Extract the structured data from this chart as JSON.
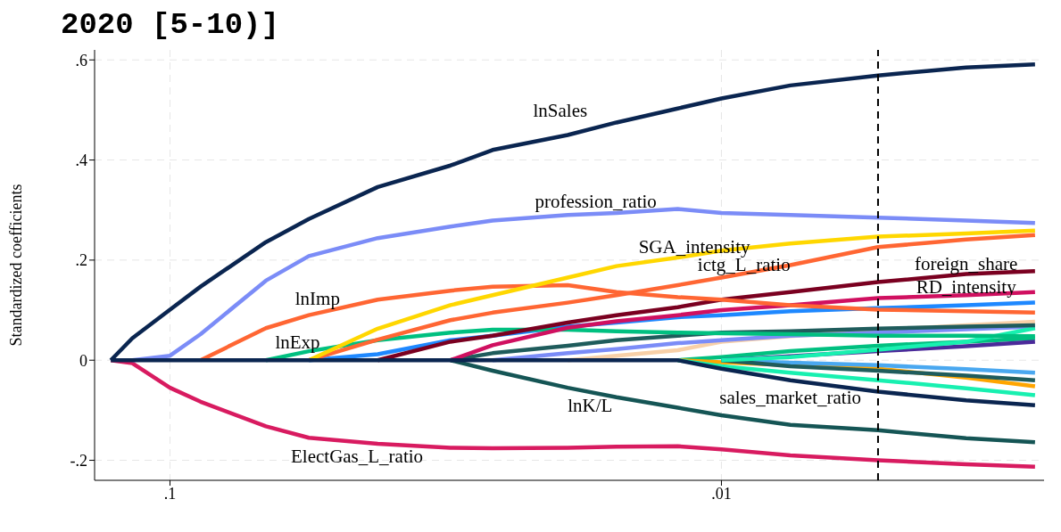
{
  "chart_data": {
    "type": "line",
    "title": "2020 [5-10)]",
    "ylabel": "Standardized coefficients",
    "log": "x",
    "grid": true,
    "legend": false,
    "marker": "none",
    "line_style": "solid",
    "x": [
      0.128,
      0.117,
      0.1,
      0.088,
      0.067,
      0.056,
      0.042,
      0.031,
      0.026,
      0.019,
      0.0155,
      0.012,
      0.01,
      0.0075,
      0.0052,
      0.0036,
      0.0027
    ],
    "xlim": [
      0.137,
      0.0026
    ],
    "xticks": [
      {
        "value": 0.1,
        "label": ".1"
      },
      {
        "value": 0.01,
        "label": ".01"
      }
    ],
    "ylim": [
      -0.24,
      0.62
    ],
    "yticks": [
      {
        "value": -0.2,
        "label": "-.2"
      },
      {
        "value": 0,
        "label": "0"
      },
      {
        "value": 0.2,
        "label": ".2"
      },
      {
        "value": 0.4,
        "label": ".4"
      },
      {
        "value": 0.6,
        "label": ".6"
      }
    ],
    "series": [
      {
        "color": "#f8d0a8",
        "values": [
          null,
          null,
          null,
          null,
          null,
          null,
          null,
          null,
          null,
          0,
          0.009,
          0.02,
          0.037,
          0.048,
          0.06,
          0.07,
          0.077
        ]
      },
      {
        "color": "#7b8cf7",
        "values": [
          null,
          null,
          null,
          null,
          null,
          null,
          null,
          null,
          0,
          0.014,
          0.022,
          0.034,
          0.04,
          0.049,
          0.055,
          0.062,
          0.067
        ]
      },
      {
        "color": "#00c080",
        "values": [
          null,
          null,
          null,
          null,
          null,
          null,
          null,
          null,
          null,
          null,
          null,
          0,
          0.006,
          0.018,
          0.029,
          0.037,
          0.044
        ]
      },
      {
        "color": "#4b2a9a",
        "values": [
          null,
          null,
          null,
          null,
          null,
          null,
          null,
          null,
          null,
          null,
          null,
          null,
          0,
          0.008,
          0.018,
          0.028,
          0.037
        ]
      },
      {
        "color": "#ffa500",
        "values": [
          null,
          null,
          null,
          null,
          null,
          null,
          null,
          null,
          null,
          null,
          null,
          0,
          -0.004,
          -0.01,
          -0.017,
          -0.035,
          -0.052
        ]
      },
      {
        "color": "#18f0b0",
        "values": [
          null,
          null,
          null,
          null,
          null,
          null,
          null,
          null,
          null,
          null,
          null,
          0,
          -0.012,
          -0.025,
          -0.04,
          -0.056,
          -0.07
        ]
      },
      {
        "color": "#4aa8f0",
        "values": [
          null,
          null,
          null,
          null,
          null,
          null,
          null,
          null,
          null,
          null,
          null,
          null,
          0,
          -0.005,
          -0.01,
          -0.018,
          -0.025
        ]
      },
      {
        "color": "#1f5c5c",
        "values": [
          null,
          null,
          null,
          null,
          null,
          null,
          null,
          null,
          null,
          null,
          null,
          null,
          0,
          -0.012,
          -0.021,
          -0.031,
          -0.04
        ]
      },
      {
        "color": "#18f0b0",
        "values": [
          null,
          null,
          null,
          null,
          null,
          null,
          null,
          null,
          null,
          null,
          null,
          null,
          0,
          0.006,
          0.021,
          0.037,
          0.064
        ]
      },
      {
        "color": "#1f5c5c",
        "values": [
          null,
          null,
          null,
          null,
          null,
          null,
          null,
          0,
          0.014,
          0.029,
          0.04,
          0.049,
          0.055,
          0.058,
          0.063,
          0.067,
          0.07
        ]
      },
      {
        "color": "#1e88ff",
        "values": [
          null,
          null,
          null,
          null,
          null,
          0,
          0.012,
          0.04,
          0.049,
          0.067,
          0.075,
          0.086,
          0.09,
          0.098,
          0.104,
          0.11,
          0.115
        ]
      },
      {
        "color": "#00c080",
        "values": [
          null,
          null,
          null,
          null,
          0,
          0.018,
          0.04,
          0.055,
          0.061,
          0.061,
          0.058,
          0.055,
          0.054,
          0.052,
          0.049,
          0.049,
          0.048
        ]
      },
      {
        "color": "#d01060",
        "values": [
          null,
          null,
          null,
          null,
          null,
          null,
          null,
          0,
          0.03,
          0.065,
          0.078,
          0.09,
          0.1,
          0.11,
          0.124,
          0.13,
          0.136
        ]
      },
      {
        "color": "#7a0020",
        "values": [
          null,
          null,
          null,
          null,
          null,
          null,
          0,
          0.037,
          0.049,
          0.075,
          0.09,
          0.106,
          0.121,
          0.136,
          0.156,
          0.172,
          0.178
        ]
      },
      {
        "color": "#ff6633",
        "values": [
          null,
          null,
          null,
          null,
          null,
          0,
          0.041,
          0.08,
          0.095,
          0.115,
          0.13,
          0.15,
          0.165,
          0.19,
          0.226,
          0.241,
          0.25
        ]
      },
      {
        "color": "#ff6633",
        "values": [
          null,
          null,
          null,
          0,
          0.064,
          0.09,
          0.121,
          0.139,
          0.147,
          0.15,
          0.136,
          0.126,
          0.121,
          0.11,
          0.101,
          0.098,
          0.095
        ]
      },
      {
        "color": "#ffd700",
        "values": [
          null,
          null,
          null,
          null,
          null,
          0,
          0.063,
          0.11,
          0.13,
          0.165,
          0.188,
          0.205,
          0.219,
          0.233,
          0.247,
          0.253,
          0.259
        ]
      },
      {
        "color": "#155555",
        "values": [
          null,
          null,
          null,
          null,
          null,
          null,
          null,
          0,
          -0.021,
          -0.055,
          -0.074,
          -0.095,
          -0.11,
          -0.129,
          -0.14,
          -0.156,
          -0.164
        ]
      },
      {
        "color": "#d81b60",
        "values": [
          0,
          -0.006,
          -0.055,
          -0.083,
          -0.132,
          -0.155,
          -0.167,
          -0.175,
          -0.176,
          -0.175,
          -0.173,
          -0.172,
          -0.178,
          -0.19,
          -0.2,
          -0.208,
          -0.213
        ]
      },
      {
        "color": "#7b8cf7",
        "values": [
          null,
          0,
          0.009,
          0.052,
          0.159,
          0.208,
          0.244,
          0.267,
          0.279,
          0.29,
          0.294,
          0.302,
          0.294,
          0.29,
          0.285,
          0.279,
          0.274
        ]
      },
      {
        "color": "#0a2550",
        "values": [
          0,
          0.044,
          0.101,
          0.147,
          0.236,
          0.282,
          0.346,
          0.389,
          0.42,
          0.45,
          0.475,
          0.503,
          0.523,
          0.549,
          0.569,
          0.585,
          0.591
        ]
      },
      {
        "color": "#0a2550",
        "values": [
          0,
          0,
          0,
          0,
          0,
          0,
          0,
          0,
          0,
          0,
          0,
          0,
          -0.017,
          -0.04,
          -0.063,
          -0.08,
          -0.09
        ]
      }
    ],
    "ref_lines": [
      {
        "axis": "x",
        "value": 0.0052,
        "color": "#000000",
        "line_style": "dashed"
      }
    ],
    "annotations": [
      "lnSales",
      "profession_ratio",
      "SGA_intensity",
      "ictg_L_ratio",
      "foreign_share",
      "RD_intensity",
      "lnImp",
      "lnExp",
      "lnK/L",
      "sales_market_ratio",
      "ElectGas_L_ratio"
    ]
  }
}
